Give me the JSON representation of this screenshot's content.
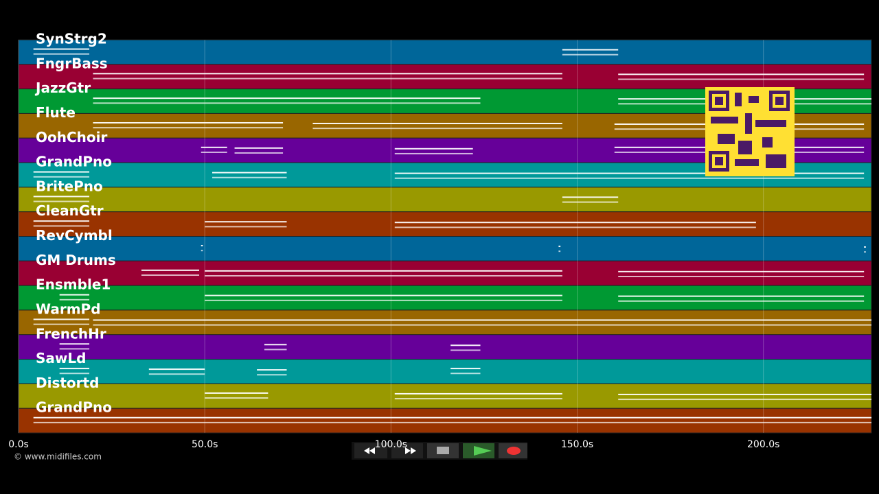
{
  "watermark": "© www.midifiles.com",
  "timeline": {
    "xlim": [
      0,
      229
    ],
    "xticks": [
      {
        "value": 0,
        "label": "0.0s"
      },
      {
        "value": 50,
        "label": "50.0s"
      },
      {
        "value": 100,
        "label": "100.0s"
      },
      {
        "value": 150,
        "label": "150.0s"
      },
      {
        "value": 200,
        "label": "200.0s"
      }
    ],
    "tracks": [
      {
        "name": "SynStrg2",
        "color": "#006699",
        "notes": [
          [
            4,
            19
          ],
          [
            146,
            161
          ]
        ]
      },
      {
        "name": "FngrBass",
        "color": "#990033",
        "notes": [
          [
            20,
            146
          ],
          [
            161,
            227
          ]
        ]
      },
      {
        "name": "JazzGtr",
        "color": "#009933",
        "notes": [
          [
            20,
            124
          ],
          [
            161,
            229
          ]
        ]
      },
      {
        "name": "Flute",
        "color": "#996600",
        "notes": [
          [
            20,
            71
          ],
          [
            79,
            146
          ],
          [
            160,
            227
          ]
        ]
      },
      {
        "name": "OohChoir",
        "color": "#660099",
        "notes": [
          [
            49,
            56
          ],
          [
            58,
            71
          ],
          [
            101,
            122
          ],
          [
            160,
            227
          ]
        ]
      },
      {
        "name": "GrandPno",
        "color": "#009999",
        "notes": [
          [
            4,
            19
          ],
          [
            52,
            72
          ],
          [
            101,
            227
          ]
        ]
      },
      {
        "name": "BritePno",
        "color": "#999900",
        "notes": [
          [
            4,
            19
          ],
          [
            146,
            161
          ]
        ]
      },
      {
        "name": "CleanGtr",
        "color": "#993300",
        "notes": [
          [
            4,
            19
          ],
          [
            50,
            72
          ],
          [
            101,
            198
          ]
        ]
      },
      {
        "name": "RevCymbl",
        "color": "#006699",
        "notes": [
          [
            49,
            49.5
          ],
          [
            145,
            145.5
          ],
          [
            227,
            227.5
          ]
        ]
      },
      {
        "name": "GM Drums",
        "color": "#990033",
        "notes": [
          [
            33,
            48.5
          ],
          [
            50,
            146
          ],
          [
            161,
            227
          ]
        ]
      },
      {
        "name": "Ensmble1",
        "color": "#009933",
        "notes": [
          [
            11,
            19
          ],
          [
            50,
            146
          ],
          [
            161,
            227
          ]
        ]
      },
      {
        "name": "WarmPd",
        "color": "#996600",
        "notes": [
          [
            4,
            19
          ],
          [
            20,
            229
          ]
        ]
      },
      {
        "name": "FrenchHr",
        "color": "#660099",
        "notes": [
          [
            11,
            19
          ],
          [
            66,
            72
          ],
          [
            116,
            124
          ]
        ]
      },
      {
        "name": "SawLd",
        "color": "#009999",
        "notes": [
          [
            11,
            19
          ],
          [
            35,
            50
          ],
          [
            64,
            72
          ],
          [
            116,
            124
          ]
        ]
      },
      {
        "name": "Distortd",
        "color": "#999900",
        "notes": [
          [
            50,
            67
          ],
          [
            101,
            146
          ],
          [
            161,
            229
          ]
        ]
      },
      {
        "name": "GrandPno",
        "color": "#993300",
        "notes": [
          [
            4,
            229
          ]
        ]
      }
    ]
  }
}
